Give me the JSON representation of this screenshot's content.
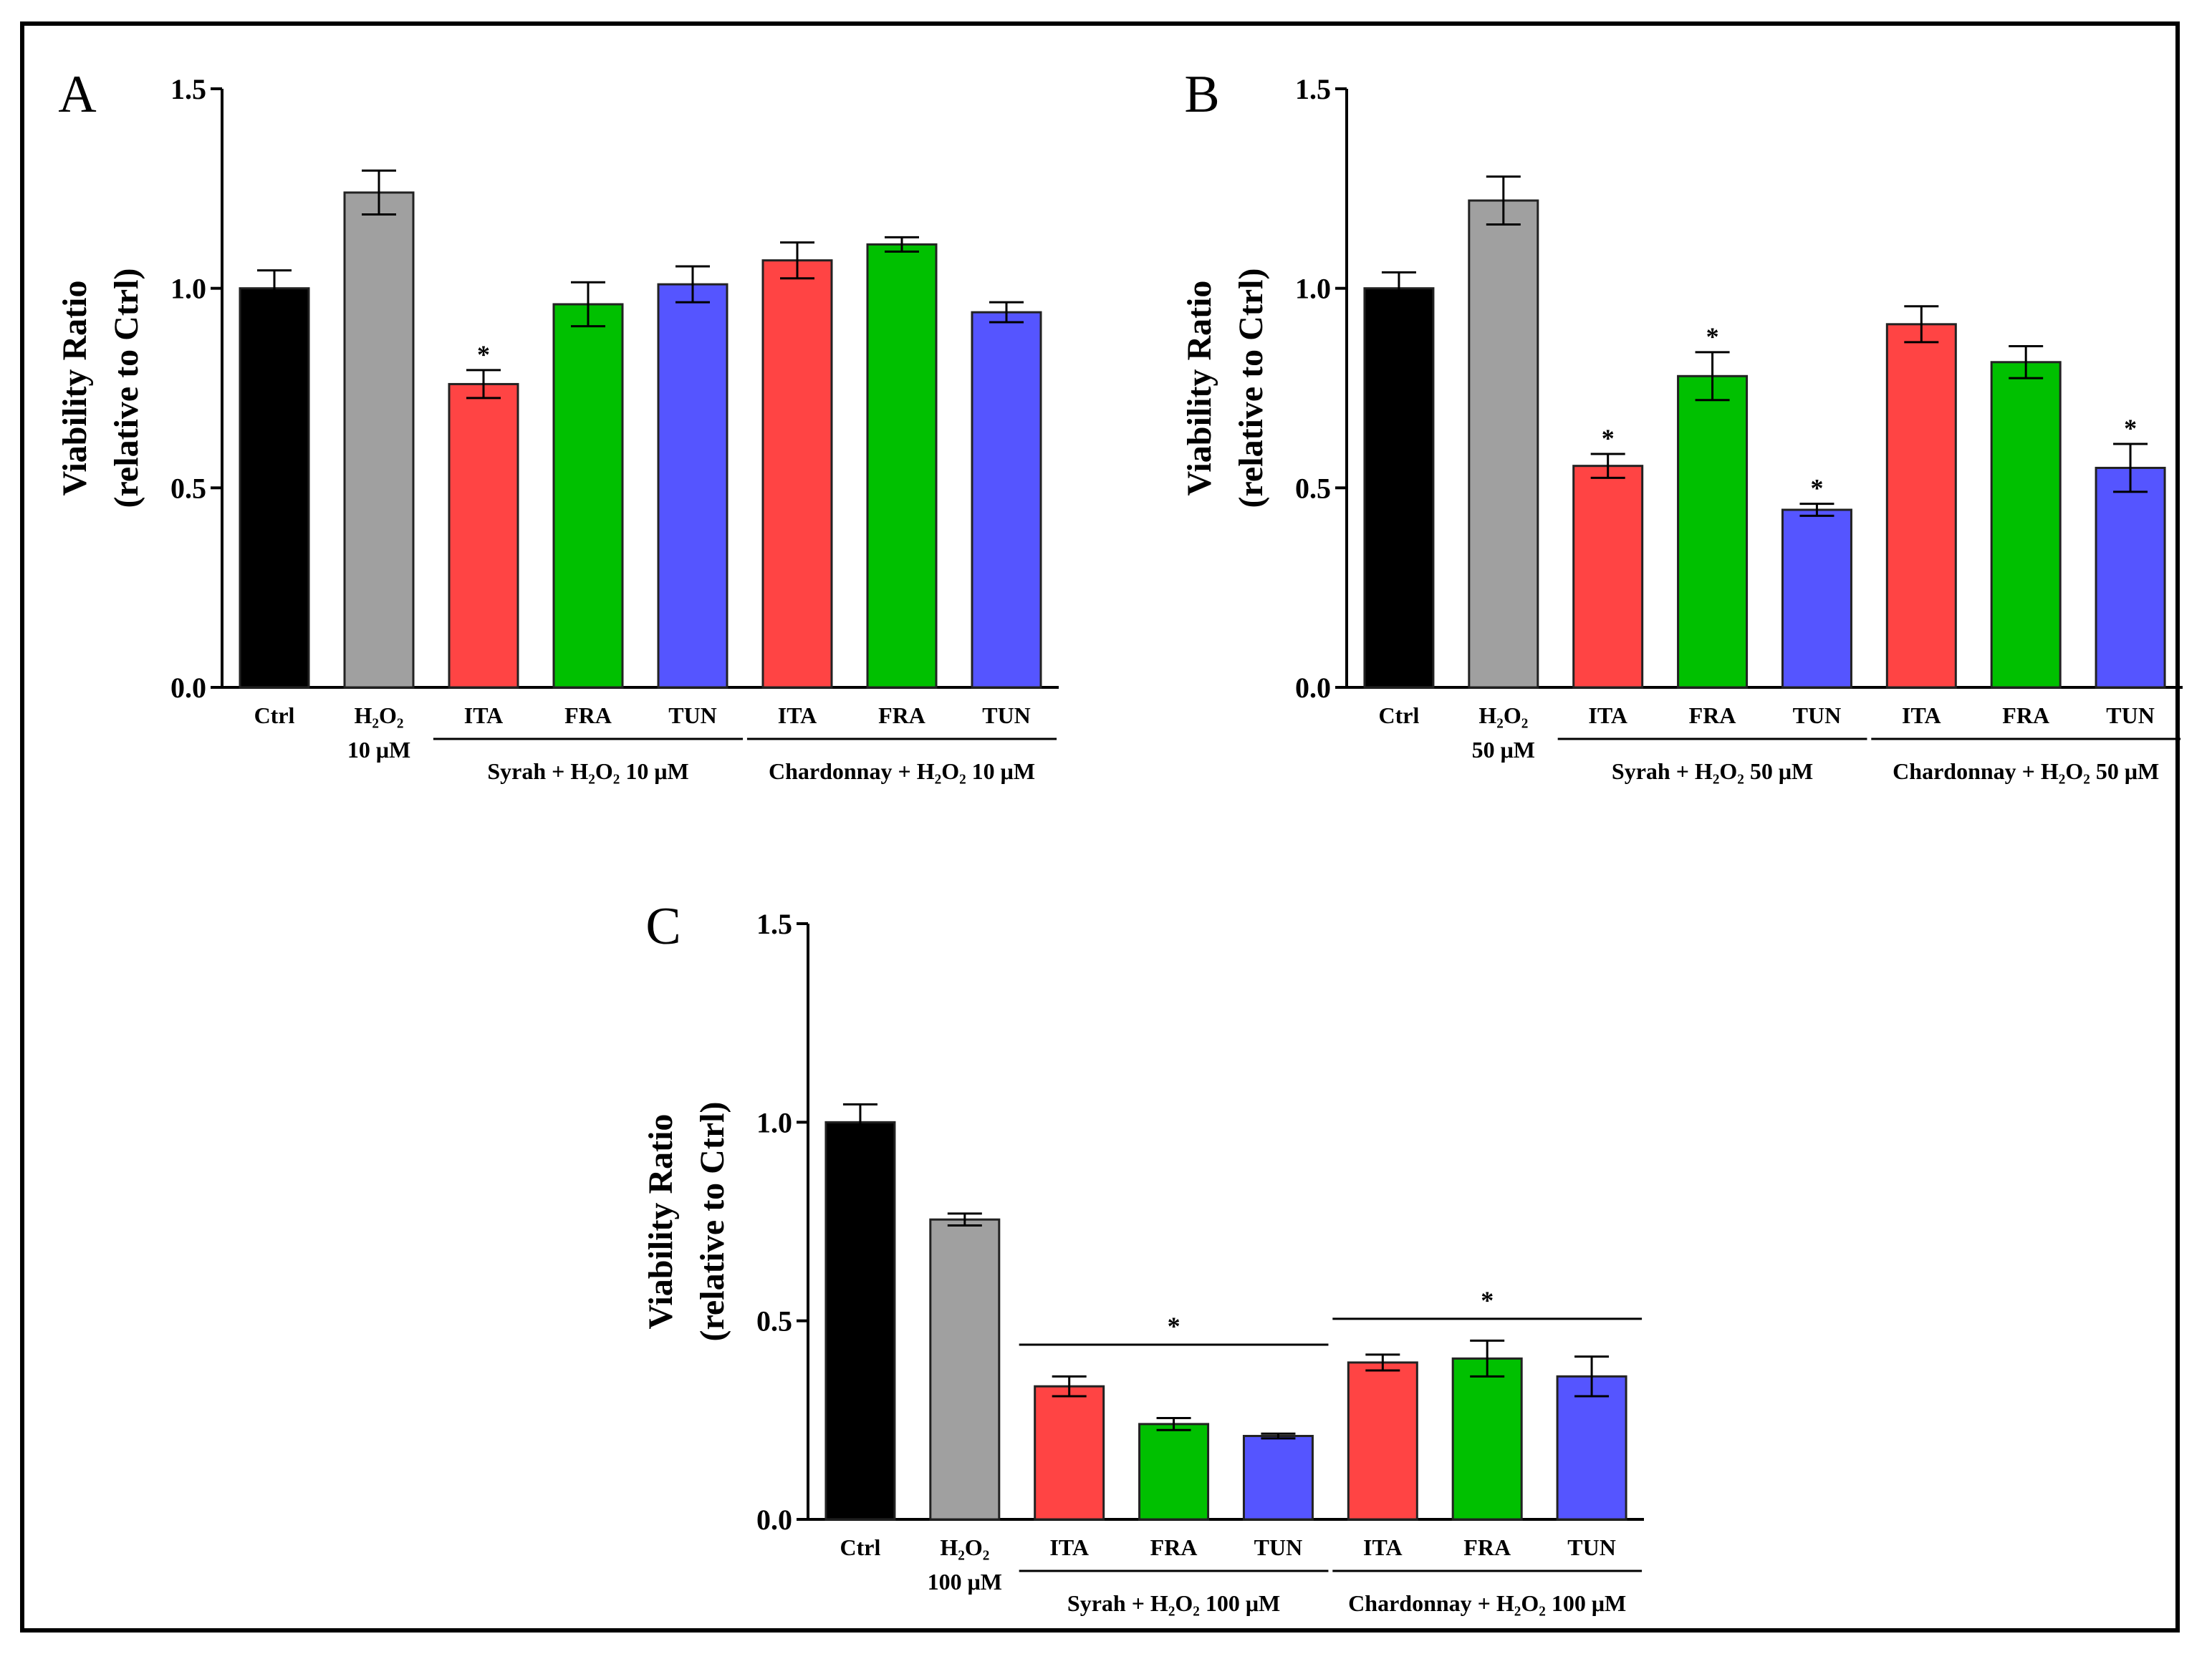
{
  "chart_data": [
    {
      "type": "bar",
      "panel": "A",
      "ylabel_line1": "Viability Ratio",
      "ylabel_line2": "(relative to Ctrl)",
      "ylim": [
        0,
        1.5
      ],
      "yticks": [
        "0.0",
        "0.5",
        "1.0",
        "1.5"
      ],
      "categories": [
        {
          "line1": "Ctrl",
          "line2": ""
        },
        {
          "line1": "H₂O₂",
          "line2": "10 μM"
        },
        {
          "line1": "ITA",
          "line2": ""
        },
        {
          "line1": "FRA",
          "line2": ""
        },
        {
          "line1": "TUN",
          "line2": ""
        },
        {
          "line1": "ITA",
          "line2": ""
        },
        {
          "line1": "FRA",
          "line2": ""
        },
        {
          "line1": "TUN",
          "line2": ""
        }
      ],
      "values": [
        1.0,
        1.24,
        0.76,
        0.96,
        1.01,
        1.07,
        1.11,
        0.94
      ],
      "errors": [
        0.045,
        0.055,
        0.035,
        0.055,
        0.045,
        0.045,
        0.018,
        0.025
      ],
      "colors": [
        "#000000",
        "#a0a0a0",
        "#ff4444",
        "#00c000",
        "#5555ff",
        "#ff4444",
        "#00c000",
        "#5555ff"
      ],
      "bar_significance": [
        "",
        "",
        "*",
        "",
        "",
        "",
        "",
        ""
      ],
      "groups": [
        {
          "label": "Syrah + H₂O₂ 10 μM",
          "from": 2,
          "to": 4
        },
        {
          "label": "Chardonnay + H₂O₂ 10 μM",
          "from": 5,
          "to": 7
        }
      ],
      "group_significance": []
    },
    {
      "type": "bar",
      "panel": "B",
      "ylabel_line1": "Viability Ratio",
      "ylabel_line2": "(relative to Ctrl)",
      "ylim": [
        0,
        1.5
      ],
      "yticks": [
        "0.0",
        "0.5",
        "1.0",
        "1.5"
      ],
      "categories": [
        {
          "line1": "Ctrl",
          "line2": ""
        },
        {
          "line1": "H₂O₂",
          "line2": "50 μM"
        },
        {
          "line1": "ITA",
          "line2": ""
        },
        {
          "line1": "FRA",
          "line2": ""
        },
        {
          "line1": "TUN",
          "line2": ""
        },
        {
          "line1": "ITA",
          "line2": ""
        },
        {
          "line1": "FRA",
          "line2": ""
        },
        {
          "line1": "TUN",
          "line2": ""
        }
      ],
      "values": [
        1.0,
        1.22,
        0.555,
        0.78,
        0.445,
        0.91,
        0.815,
        0.55
      ],
      "errors": [
        0.04,
        0.06,
        0.03,
        0.06,
        0.015,
        0.045,
        0.04,
        0.06
      ],
      "colors": [
        "#000000",
        "#a0a0a0",
        "#ff4444",
        "#00c000",
        "#5555ff",
        "#ff4444",
        "#00c000",
        "#5555ff"
      ],
      "bar_significance": [
        "",
        "",
        "*",
        "*",
        "*",
        "",
        "",
        "*"
      ],
      "groups": [
        {
          "label": "Syrah + H₂O₂ 50 μM",
          "from": 2,
          "to": 4
        },
        {
          "label": "Chardonnay + H₂O₂ 50 μM",
          "from": 5,
          "to": 7
        }
      ],
      "group_significance": []
    },
    {
      "type": "bar",
      "panel": "C",
      "ylabel_line1": "Viability Ratio",
      "ylabel_line2": "(relative to Ctrl)",
      "ylim": [
        0,
        1.5
      ],
      "yticks": [
        "0.0",
        "0.5",
        "1.0",
        "1.5"
      ],
      "categories": [
        {
          "line1": "Ctrl",
          "line2": ""
        },
        {
          "line1": "H₂O₂",
          "line2": "100 μM"
        },
        {
          "line1": "ITA",
          "line2": ""
        },
        {
          "line1": "FRA",
          "line2": ""
        },
        {
          "line1": "TUN",
          "line2": ""
        },
        {
          "line1": "ITA",
          "line2": ""
        },
        {
          "line1": "FRA",
          "line2": ""
        },
        {
          "line1": "TUN",
          "line2": ""
        }
      ],
      "values": [
        1.0,
        0.755,
        0.335,
        0.24,
        0.21,
        0.395,
        0.405,
        0.36
      ],
      "errors": [
        0.045,
        0.015,
        0.025,
        0.015,
        0.006,
        0.02,
        0.045,
        0.05
      ],
      "colors": [
        "#000000",
        "#a0a0a0",
        "#ff4444",
        "#00c000",
        "#5555ff",
        "#ff4444",
        "#00c000",
        "#5555ff"
      ],
      "bar_significance": [
        "",
        "",
        "",
        "",
        "",
        "",
        "",
        ""
      ],
      "groups": [
        {
          "label": "Syrah + H₂O₂ 100 μM",
          "from": 2,
          "to": 4
        },
        {
          "label": "Chardonnay + H₂O₂ 100 μM",
          "from": 5,
          "to": 7
        }
      ],
      "group_significance": [
        {
          "from": 2,
          "to": 4,
          "value": 0.44,
          "label": "*"
        },
        {
          "from": 5,
          "to": 7,
          "value": 0.505,
          "label": "*"
        }
      ]
    }
  ]
}
